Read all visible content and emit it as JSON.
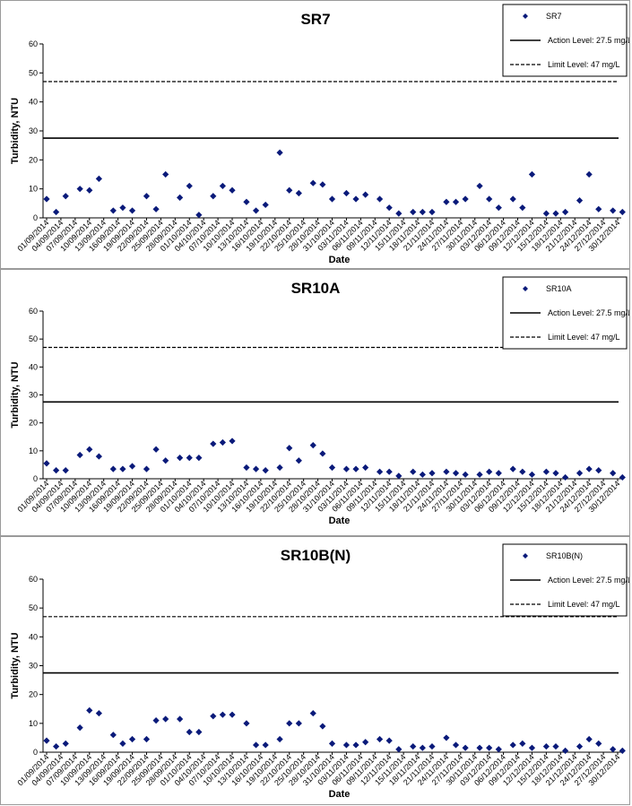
{
  "chart_data": [
    {
      "type": "scatter",
      "title": "SR7",
      "xlabel": "Date",
      "ylabel": "Turbidity, NTU",
      "ylim": [
        0,
        60
      ],
      "yticks": [
        "0",
        "10",
        "20",
        "30",
        "40",
        "50",
        "60"
      ],
      "x_tick_labels": [
        "01/09/2014",
        "04/09/2014",
        "07/09/2014",
        "10/09/2014",
        "13/09/2014",
        "16/09/2014",
        "19/09/2014",
        "22/09/2014",
        "25/09/2014",
        "28/09/2014",
        "01/10/2014",
        "04/10/2014",
        "07/10/2014",
        "10/10/2014",
        "13/10/2014",
        "16/10/2014",
        "19/10/2014",
        "22/10/2014",
        "25/10/2014",
        "28/10/2014",
        "31/10/2014",
        "03/11/2014",
        "06/11/2014",
        "09/11/2014",
        "12/11/2014",
        "15/11/2014",
        "18/11/2014",
        "21/11/2014",
        "24/11/2014",
        "27/11/2014",
        "30/11/2014",
        "03/12/2014",
        "06/12/2014",
        "09/12/2014",
        "12/12/2014",
        "15/12/2014",
        "18/12/2014",
        "21/12/2014",
        "24/12/2014",
        "27/12/2014",
        "30/12/2014"
      ],
      "series": [
        {
          "name": "SR7",
          "points": [
            [
              "01/09/2014",
              6.5
            ],
            [
              "03/09/2014",
              2.0
            ],
            [
              "05/09/2014",
              7.5
            ],
            [
              "08/09/2014",
              10.0
            ],
            [
              "10/09/2014",
              9.5
            ],
            [
              "12/09/2014",
              13.5
            ],
            [
              "15/09/2014",
              2.5
            ],
            [
              "17/09/2014",
              3.5
            ],
            [
              "19/09/2014",
              2.5
            ],
            [
              "22/09/2014",
              7.5
            ],
            [
              "24/09/2014",
              3.0
            ],
            [
              "26/09/2014",
              15.0
            ],
            [
              "29/09/2014",
              7.0
            ],
            [
              "01/10/2014",
              11.0
            ],
            [
              "03/10/2014",
              1.0
            ],
            [
              "06/10/2014",
              7.5
            ],
            [
              "08/10/2014",
              11.0
            ],
            [
              "10/10/2014",
              9.5
            ],
            [
              "13/10/2014",
              5.5
            ],
            [
              "15/10/2014",
              2.5
            ],
            [
              "17/10/2014",
              4.5
            ],
            [
              "20/10/2014",
              22.5
            ],
            [
              "22/10/2014",
              9.5
            ],
            [
              "24/10/2014",
              8.5
            ],
            [
              "27/10/2014",
              12.0
            ],
            [
              "29/10/2014",
              11.5
            ],
            [
              "31/10/2014",
              6.5
            ],
            [
              "03/11/2014",
              8.5
            ],
            [
              "05/11/2014",
              6.5
            ],
            [
              "07/11/2014",
              8.0
            ],
            [
              "10/11/2014",
              6.5
            ],
            [
              "12/11/2014",
              3.5
            ],
            [
              "14/11/2014",
              1.5
            ],
            [
              "17/11/2014",
              2.0
            ],
            [
              "19/11/2014",
              2.0
            ],
            [
              "21/11/2014",
              2.0
            ],
            [
              "24/11/2014",
              5.5
            ],
            [
              "26/11/2014",
              5.5
            ],
            [
              "28/11/2014",
              6.5
            ],
            [
              "01/12/2014",
              11.0
            ],
            [
              "03/12/2014",
              6.5
            ],
            [
              "05/12/2014",
              3.5
            ],
            [
              "08/12/2014",
              6.5
            ],
            [
              "10/12/2014",
              3.5
            ],
            [
              "12/12/2014",
              15.0
            ],
            [
              "15/12/2014",
              1.5
            ],
            [
              "17/12/2014",
              1.5
            ],
            [
              "19/12/2014",
              2.0
            ],
            [
              "22/12/2014",
              6.0
            ],
            [
              "24/12/2014",
              15.0
            ],
            [
              "26/12/2014",
              3.0
            ],
            [
              "29/12/2014",
              2.5
            ],
            [
              "31/12/2014",
              2.0
            ]
          ]
        },
        {
          "name": "Action Level: 27.5 mg/L",
          "value": 27.5,
          "style": "solid"
        },
        {
          "name": "Limit Level: 47 mg/L",
          "value": 47,
          "style": "dashed"
        }
      ],
      "legend_position": "top-right"
    },
    {
      "type": "scatter",
      "title": "SR10A",
      "xlabel": "Date",
      "ylabel": "Turbidity, NTU",
      "ylim": [
        0,
        60
      ],
      "yticks": [
        "0",
        "10",
        "20",
        "30",
        "40",
        "50",
        "60"
      ],
      "x_tick_labels": [
        "01/09/2014",
        "04/09/2014",
        "07/09/2014",
        "10/09/2014",
        "13/09/2014",
        "16/09/2014",
        "19/09/2014",
        "22/09/2014",
        "25/09/2014",
        "28/09/2014",
        "01/10/2014",
        "04/10/2014",
        "07/10/2014",
        "10/10/2014",
        "13/10/2014",
        "16/10/2014",
        "19/10/2014",
        "22/10/2014",
        "25/10/2014",
        "28/10/2014",
        "31/10/2014",
        "03/11/2014",
        "06/11/2014",
        "09/11/2014",
        "12/11/2014",
        "15/11/2014",
        "18/11/2014",
        "21/11/2014",
        "24/11/2014",
        "27/11/2014",
        "30/11/2014",
        "03/12/2014",
        "06/12/2014",
        "09/12/2014",
        "12/12/2014",
        "15/12/2014",
        "18/12/2014",
        "21/12/2014",
        "24/12/2014",
        "27/12/2014",
        "30/12/2014"
      ],
      "series": [
        {
          "name": "SR10A",
          "points": [
            [
              "01/09/2014",
              5.5
            ],
            [
              "03/09/2014",
              3.0
            ],
            [
              "05/09/2014",
              3.0
            ],
            [
              "08/09/2014",
              8.5
            ],
            [
              "10/09/2014",
              10.5
            ],
            [
              "12/09/2014",
              8.0
            ],
            [
              "15/09/2014",
              3.5
            ],
            [
              "17/09/2014",
              3.5
            ],
            [
              "19/09/2014",
              4.5
            ],
            [
              "22/09/2014",
              3.5
            ],
            [
              "24/09/2014",
              10.5
            ],
            [
              "26/09/2014",
              6.5
            ],
            [
              "29/09/2014",
              7.5
            ],
            [
              "01/10/2014",
              7.5
            ],
            [
              "03/10/2014",
              7.5
            ],
            [
              "06/10/2014",
              12.5
            ],
            [
              "08/10/2014",
              13.0
            ],
            [
              "10/10/2014",
              13.5
            ],
            [
              "13/10/2014",
              4.0
            ],
            [
              "15/10/2014",
              3.5
            ],
            [
              "17/10/2014",
              3.0
            ],
            [
              "20/10/2014",
              4.0
            ],
            [
              "22/10/2014",
              11.0
            ],
            [
              "24/10/2014",
              6.5
            ],
            [
              "27/10/2014",
              12.0
            ],
            [
              "29/10/2014",
              9.0
            ],
            [
              "31/10/2014",
              4.0
            ],
            [
              "03/11/2014",
              3.5
            ],
            [
              "05/11/2014",
              3.5
            ],
            [
              "07/11/2014",
              4.0
            ],
            [
              "10/11/2014",
              2.5
            ],
            [
              "12/11/2014",
              2.5
            ],
            [
              "14/11/2014",
              1.0
            ],
            [
              "17/11/2014",
              2.5
            ],
            [
              "19/11/2014",
              1.5
            ],
            [
              "21/11/2014",
              2.0
            ],
            [
              "24/11/2014",
              2.5
            ],
            [
              "26/11/2014",
              2.0
            ],
            [
              "28/11/2014",
              1.5
            ],
            [
              "01/12/2014",
              1.5
            ],
            [
              "03/12/2014",
              2.5
            ],
            [
              "05/12/2014",
              2.0
            ],
            [
              "08/12/2014",
              3.5
            ],
            [
              "10/12/2014",
              2.5
            ],
            [
              "12/12/2014",
              1.5
            ],
            [
              "15/12/2014",
              2.5
            ],
            [
              "17/12/2014",
              2.0
            ],
            [
              "19/12/2014",
              0.5
            ],
            [
              "22/12/2014",
              2.0
            ],
            [
              "24/12/2014",
              3.5
            ],
            [
              "26/12/2014",
              3.0
            ],
            [
              "29/12/2014",
              2.0
            ],
            [
              "31/12/2014",
              0.5
            ]
          ]
        },
        {
          "name": "Action Level: 27.5 mg/L",
          "value": 27.5,
          "style": "solid"
        },
        {
          "name": "Limit Level: 47 mg/L",
          "value": 47,
          "style": "dashed"
        }
      ],
      "legend_position": "top-right"
    },
    {
      "type": "scatter",
      "title": "SR10B(N)",
      "xlabel": "Date",
      "ylabel": "Turbidity, NTU",
      "ylim": [
        0,
        60
      ],
      "yticks": [
        "0",
        "10",
        "20",
        "30",
        "40",
        "50",
        "60"
      ],
      "x_tick_labels": [
        "01/09/2014",
        "04/09/2014",
        "07/09/2014",
        "10/09/2014",
        "13/09/2014",
        "16/09/2014",
        "19/09/2014",
        "22/09/2014",
        "25/09/2014",
        "28/09/2014",
        "01/10/2014",
        "04/10/2014",
        "07/10/2014",
        "10/10/2014",
        "13/10/2014",
        "16/10/2014",
        "19/10/2014",
        "22/10/2014",
        "25/10/2014",
        "28/10/2014",
        "31/10/2014",
        "03/11/2014",
        "06/11/2014",
        "09/11/2014",
        "12/11/2014",
        "15/11/2014",
        "18/11/2014",
        "21/11/2014",
        "24/11/2014",
        "27/11/2014",
        "30/11/2014",
        "03/12/2014",
        "06/12/2014",
        "09/12/2014",
        "12/12/2014",
        "15/12/2014",
        "18/12/2014",
        "21/12/2014",
        "24/12/2014",
        "27/12/2014",
        "30/12/2014"
      ],
      "series": [
        {
          "name": "SR10B(N)",
          "points": [
            [
              "01/09/2014",
              4.0
            ],
            [
              "03/09/2014",
              2.0
            ],
            [
              "05/09/2014",
              3.0
            ],
            [
              "08/09/2014",
              8.5
            ],
            [
              "10/09/2014",
              14.5
            ],
            [
              "12/09/2014",
              13.5
            ],
            [
              "15/09/2014",
              6.0
            ],
            [
              "17/09/2014",
              3.0
            ],
            [
              "19/09/2014",
              4.5
            ],
            [
              "22/09/2014",
              4.5
            ],
            [
              "24/09/2014",
              11.0
            ],
            [
              "26/09/2014",
              11.5
            ],
            [
              "29/09/2014",
              11.5
            ],
            [
              "01/10/2014",
              7.0
            ],
            [
              "03/10/2014",
              7.0
            ],
            [
              "06/10/2014",
              12.5
            ],
            [
              "08/10/2014",
              13.0
            ],
            [
              "10/10/2014",
              13.0
            ],
            [
              "13/10/2014",
              10.0
            ],
            [
              "15/10/2014",
              2.5
            ],
            [
              "17/10/2014",
              2.5
            ],
            [
              "20/10/2014",
              4.5
            ],
            [
              "22/10/2014",
              10.0
            ],
            [
              "24/10/2014",
              10.0
            ],
            [
              "27/10/2014",
              13.5
            ],
            [
              "29/10/2014",
              9.0
            ],
            [
              "31/10/2014",
              3.0
            ],
            [
              "03/11/2014",
              2.5
            ],
            [
              "05/11/2014",
              2.5
            ],
            [
              "07/11/2014",
              3.5
            ],
            [
              "10/11/2014",
              4.5
            ],
            [
              "12/11/2014",
              4.0
            ],
            [
              "14/11/2014",
              1.0
            ],
            [
              "17/11/2014",
              2.0
            ],
            [
              "19/11/2014",
              1.5
            ],
            [
              "21/11/2014",
              2.0
            ],
            [
              "24/11/2014",
              5.0
            ],
            [
              "26/11/2014",
              2.5
            ],
            [
              "28/11/2014",
              1.5
            ],
            [
              "01/12/2014",
              1.5
            ],
            [
              "03/12/2014",
              1.5
            ],
            [
              "05/12/2014",
              1.0
            ],
            [
              "08/12/2014",
              2.5
            ],
            [
              "10/12/2014",
              3.0
            ],
            [
              "12/12/2014",
              1.5
            ],
            [
              "15/12/2014",
              2.0
            ],
            [
              "17/12/2014",
              2.0
            ],
            [
              "19/12/2014",
              0.5
            ],
            [
              "22/12/2014",
              2.0
            ],
            [
              "24/12/2014",
              4.5
            ],
            [
              "26/12/2014",
              3.0
            ],
            [
              "29/12/2014",
              1.0
            ],
            [
              "31/12/2014",
              0.5
            ]
          ]
        },
        {
          "name": "Action Level: 27.5 mg/L",
          "value": 27.5,
          "style": "solid"
        },
        {
          "name": "Limit Level: 47 mg/L",
          "value": 47,
          "style": "dashed"
        }
      ],
      "legend_position": "top-right"
    }
  ],
  "colors": {
    "marker": "#0a1a7a",
    "line": "#000000"
  }
}
